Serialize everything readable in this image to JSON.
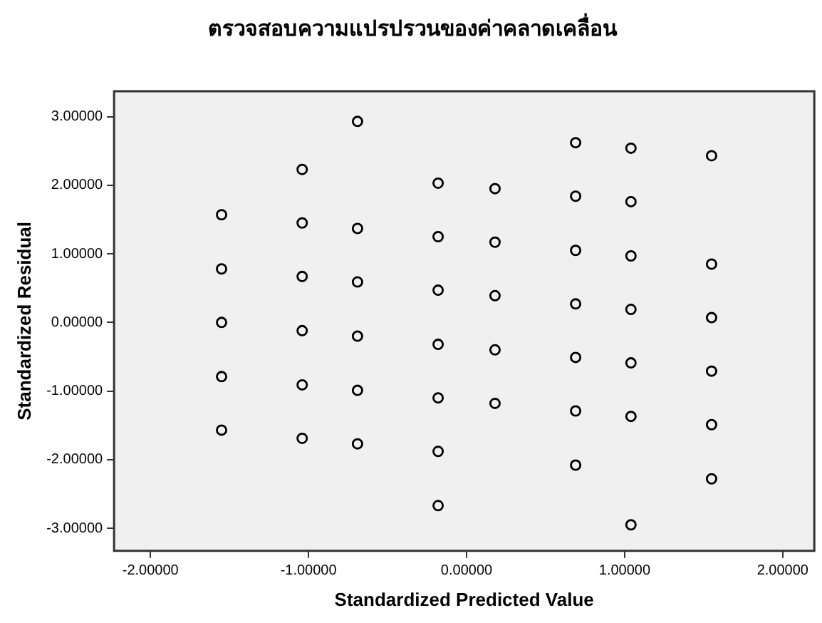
{
  "chart_data": {
    "type": "scatter",
    "title": "ตรวจสอบความแปรปรวนของค่าคลาดเคลื่อน",
    "xlabel": "Standardized Predicted Value",
    "ylabel": "Standardized Residual",
    "marker": "circle",
    "grid": false,
    "legend": false,
    "xlim": [
      -2.23,
      2.2
    ],
    "ylim": [
      -3.33,
      3.37
    ],
    "xticks": [
      {
        "value": -2,
        "label": "-2.00000"
      },
      {
        "value": -1,
        "label": "-1.00000"
      },
      {
        "value": 0,
        "label": "0.00000"
      },
      {
        "value": 1,
        "label": "1.00000"
      },
      {
        "value": 2,
        "label": "2.00000"
      }
    ],
    "yticks": [
      {
        "value": -3,
        "label": "-3.00000"
      },
      {
        "value": -2,
        "label": "-2.00000"
      },
      {
        "value": -1,
        "label": "-1.00000"
      },
      {
        "value": 0,
        "label": "0.00000"
      },
      {
        "value": 1,
        "label": "1.00000"
      },
      {
        "value": 2,
        "label": "2.00000"
      },
      {
        "value": 3,
        "label": "3.00000"
      }
    ],
    "series": [
      {
        "color": "#000000",
        "x": [
          -1.55,
          -1.55,
          -1.55,
          -1.55,
          -1.55,
          -1.04,
          -1.04,
          -1.04,
          -1.04,
          -1.04,
          -1.04,
          -0.69,
          -0.69,
          -0.69,
          -0.69,
          -0.69,
          -0.69,
          -0.18,
          -0.18,
          -0.18,
          -0.18,
          -0.18,
          -0.18,
          -0.18,
          0.18,
          0.18,
          0.18,
          0.18,
          0.18,
          0.69,
          0.69,
          0.69,
          0.69,
          0.69,
          0.69,
          0.69,
          1.04,
          1.04,
          1.04,
          1.04,
          1.04,
          1.04,
          1.04,
          1.55,
          1.55,
          1.55,
          1.55,
          1.55,
          1.55
        ],
        "values": [
          1.57,
          0.78,
          0,
          -0.79,
          -1.57,
          2.23,
          1.45,
          0.67,
          -0.12,
          -0.91,
          -1.69,
          2.93,
          1.37,
          0.59,
          -0.2,
          -0.99,
          -1.77,
          2.03,
          1.25,
          0.47,
          -0.32,
          -1.1,
          -1.88,
          -2.67,
          1.95,
          1.17,
          0.39,
          -0.4,
          -1.18,
          2.62,
          1.84,
          1.05,
          0.27,
          -0.51,
          -1.29,
          -2.08,
          2.54,
          1.76,
          0.97,
          0.19,
          -0.59,
          -1.37,
          -2.95,
          2.43,
          0.85,
          0.07,
          -0.71,
          -1.49,
          -2.28
        ]
      }
    ]
  }
}
